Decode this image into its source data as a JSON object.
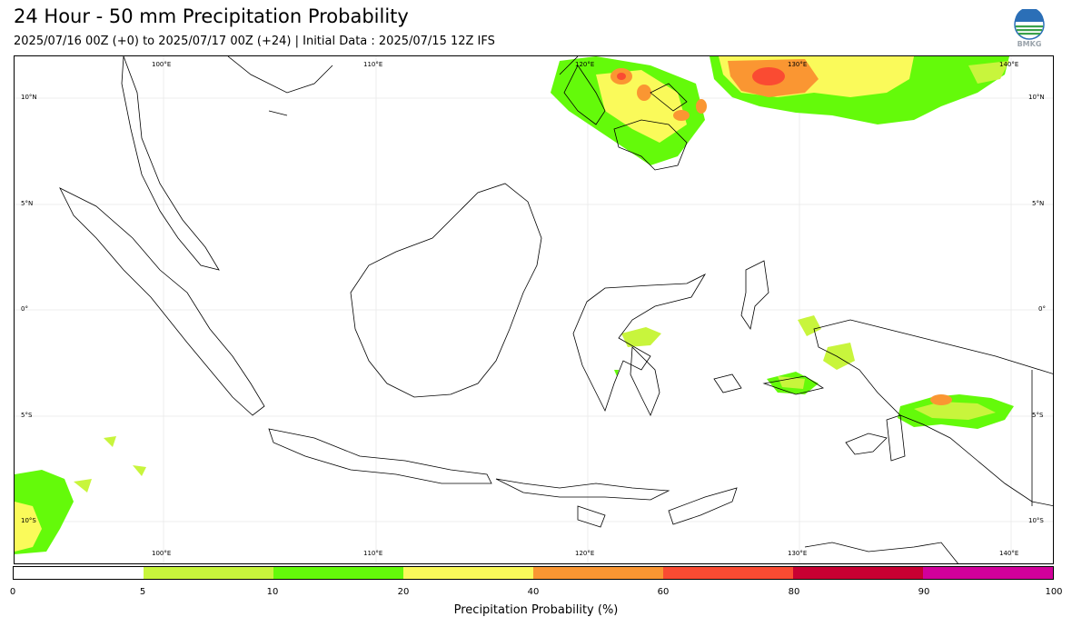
{
  "header": {
    "title": "24 Hour - 50 mm Precipitation Probability",
    "subtitle": "2025/07/16 00Z (+0) to 2025/07/17 00Z (+24) | Initial Data : 2025/07/15 12Z IFS",
    "logo_text": "BMKG"
  },
  "map": {
    "lon_ticks_top": [
      "100°E",
      "110°E",
      "120°E",
      "130°E",
      "140°E"
    ],
    "lon_ticks_bottom": [
      "100°E",
      "110°E",
      "120°E",
      "130°E",
      "140°E"
    ],
    "lat_ticks_left": [
      "10°N",
      "5°N",
      "0°",
      "5°S",
      "10°S"
    ],
    "lat_ticks_right": [
      "10°N",
      "5°N",
      "0°",
      "5°S",
      "10°S"
    ],
    "land_outline_color": "#000000",
    "grid_color": "#e6e6e6"
  },
  "legend": {
    "label": "Precipitation Probability (%)",
    "ticks": [
      "0",
      "5",
      "10",
      "20",
      "40",
      "60",
      "80",
      "90",
      "100"
    ],
    "bins": [
      {
        "range": "0-5",
        "color": "#ffffff"
      },
      {
        "range": "5-10",
        "color": "#c8f53c"
      },
      {
        "range": "10-20",
        "color": "#64fa0a"
      },
      {
        "range": "20-40",
        "color": "#fafa5a"
      },
      {
        "range": "40-60",
        "color": "#fa9632"
      },
      {
        "range": "60-80",
        "color": "#fa4b32"
      },
      {
        "range": "80-90",
        "color": "#c80032"
      },
      {
        "range": "90-100",
        "color": "#d2009b"
      }
    ]
  }
}
